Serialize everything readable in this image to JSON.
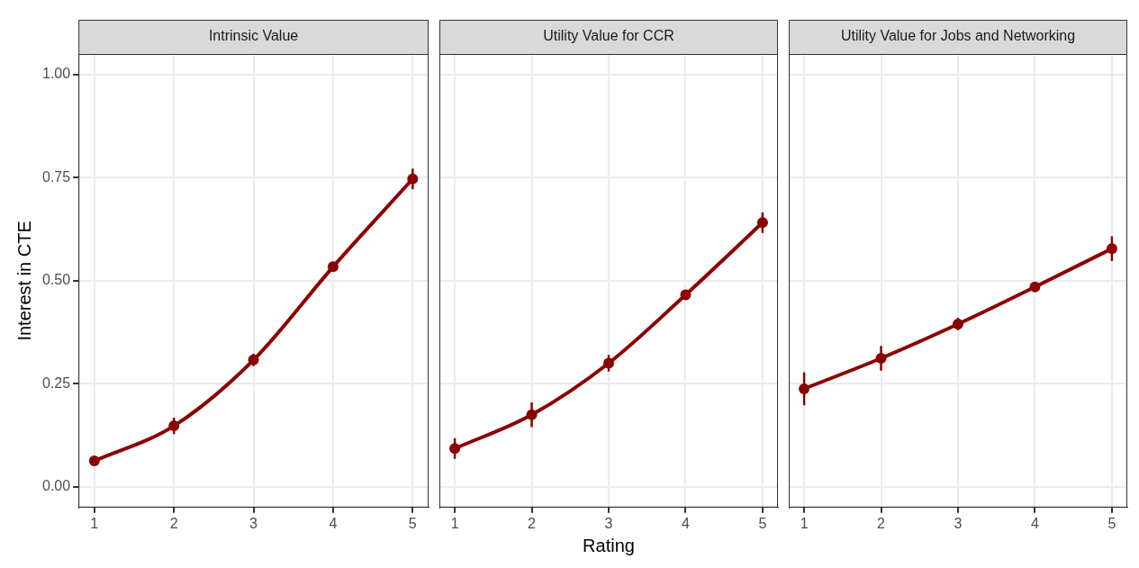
{
  "chart_data": [
    {
      "type": "line",
      "title": "Intrinsic Value",
      "ylabel": "Interest in CTE",
      "x": [
        1,
        2,
        3,
        4,
        5
      ],
      "xlim": [
        0.8,
        5.2
      ],
      "xticks": [
        1,
        2,
        3,
        4,
        5
      ],
      "ylim": [
        -0.05,
        1.05
      ],
      "yticks": [
        {
          "value": 0,
          "label": "0.00"
        },
        {
          "value": 0.25,
          "label": "0.25"
        },
        {
          "value": 0.5,
          "label": "0.50"
        },
        {
          "value": 0.75,
          "label": "0.75"
        },
        {
          "value": 1,
          "label": "1.00"
        }
      ],
      "grid": true,
      "marker": "circle",
      "line_style": "solid",
      "series": [
        {
          "color": "#8b0000",
          "values": [
            0.063,
            0.148,
            0.308,
            0.534,
            0.747
          ],
          "errors": [
            0.01,
            0.02,
            0.015,
            0.012,
            0.025
          ]
        }
      ]
    },
    {
      "type": "line",
      "title": "Utility Value for CCR",
      "xlabel": "Rating",
      "x": [
        1,
        2,
        3,
        4,
        5
      ],
      "xlim": [
        0.8,
        5.2
      ],
      "xticks": [
        1,
        2,
        3,
        4,
        5
      ],
      "ylim": [
        -0.05,
        1.05
      ],
      "yticks": [
        0,
        0.25,
        0.5,
        0.75,
        1
      ],
      "tick_labels": "x",
      "grid": true,
      "marker": "circle",
      "line_style": "solid",
      "series": [
        {
          "color": "#8b0000",
          "values": [
            0.093,
            0.175,
            0.3,
            0.466,
            0.641
          ],
          "errors": [
            0.025,
            0.03,
            0.02,
            0.012,
            0.025
          ]
        }
      ]
    },
    {
      "type": "line",
      "title": "Utility Value for Jobs and Networking",
      "x": [
        1,
        2,
        3,
        4,
        5
      ],
      "xlim": [
        0.8,
        5.2
      ],
      "xticks": [
        1,
        2,
        3,
        4,
        5
      ],
      "ylim": [
        -0.05,
        1.05
      ],
      "yticks": [
        0,
        0.25,
        0.5,
        0.75,
        1
      ],
      "tick_labels": "x",
      "grid": true,
      "marker": "circle",
      "line_style": "solid",
      "series": [
        {
          "color": "#8b0000",
          "values": [
            0.238,
            0.312,
            0.395,
            0.485,
            0.578
          ],
          "errors": [
            0.04,
            0.03,
            0.015,
            0.01,
            0.03
          ]
        }
      ]
    }
  ]
}
